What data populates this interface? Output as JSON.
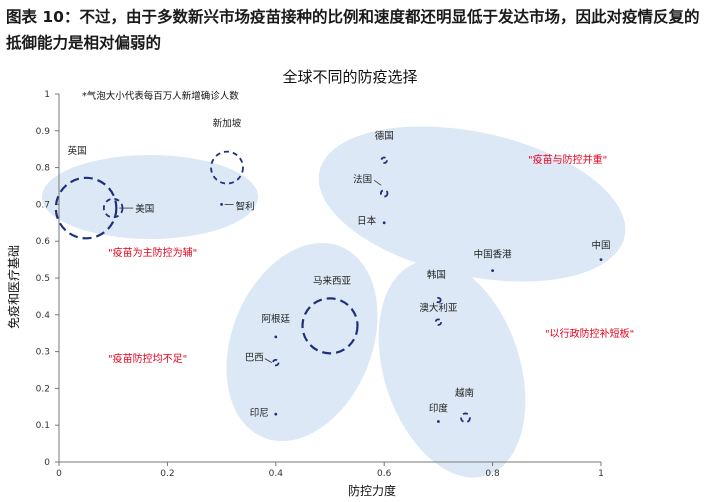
{
  "figure": {
    "caption": "图表 10：不过，由于多数新兴市场疫苗接种的比例和速度都还明显低于发达市场，因此对疫情反复的抵御能力是相对偏弱的"
  },
  "chart_data": {
    "type": "scatter",
    "title": "全球不同的防疫选择",
    "xlabel": "防控力度",
    "ylabel": "免疫和医疗基础",
    "note": "*气泡大小代表每百万人新增确诊人数",
    "xlim": [
      0,
      1
    ],
    "ylim": [
      0,
      1
    ],
    "xticks": [
      "0",
      "0.2",
      "0.4",
      "0.6",
      "0.8",
      "1"
    ],
    "yticks": [
      "0",
      "0.1",
      "0.2",
      "0.3",
      "0.4",
      "0.5",
      "0.6",
      "0.7",
      "0.8",
      "0.9",
      "1"
    ],
    "grid": false,
    "points": [
      {
        "name": "英国",
        "x": 0.05,
        "y": 0.69,
        "bubble": 0.55
      },
      {
        "name": "美国",
        "x": 0.1,
        "y": 0.69,
        "bubble": 0.17
      },
      {
        "name": "新加坡",
        "x": 0.31,
        "y": 0.8,
        "bubble": 0.29
      },
      {
        "name": "智利",
        "x": 0.3,
        "y": 0.7,
        "bubble": 0.0
      },
      {
        "name": "德国",
        "x": 0.6,
        "y": 0.82,
        "bubble": 0.05
      },
      {
        "name": "法国",
        "x": 0.6,
        "y": 0.73,
        "bubble": 0.06
      },
      {
        "name": "日本",
        "x": 0.6,
        "y": 0.65,
        "bubble": 0.0
      },
      {
        "name": "中国香港",
        "x": 0.8,
        "y": 0.52,
        "bubble": 0.0
      },
      {
        "name": "中国",
        "x": 1.0,
        "y": 0.55,
        "bubble": 0.0
      },
      {
        "name": "马来西亚",
        "x": 0.5,
        "y": 0.37,
        "bubble": 0.5
      },
      {
        "name": "阿根廷",
        "x": 0.4,
        "y": 0.34,
        "bubble": 0.0
      },
      {
        "name": "巴西",
        "x": 0.4,
        "y": 0.27,
        "bubble": 0.05
      },
      {
        "name": "印尼",
        "x": 0.4,
        "y": 0.13,
        "bubble": 0.0
      },
      {
        "name": "韩国",
        "x": 0.7,
        "y": 0.44,
        "bubble": 0.04
      },
      {
        "name": "澳大利亚",
        "x": 0.7,
        "y": 0.38,
        "bubble": 0.05
      },
      {
        "name": "印度",
        "x": 0.7,
        "y": 0.11,
        "bubble": 0.0
      },
      {
        "name": "越南",
        "x": 0.75,
        "y": 0.12,
        "bubble": 0.08
      }
    ],
    "annotations": [
      {
        "text": "\"疫苗与防控并重\"",
        "color": "#e8001c"
      },
      {
        "text": "\"疫苗为主防控为辅\"",
        "color": "#e8001c"
      },
      {
        "text": "\"疫苗防控均不足\"",
        "color": "#e8001c"
      },
      {
        "text": "\"以行政防控补短板\"",
        "color": "#e8001c"
      }
    ],
    "colors": {
      "bubble": "#1f2f7a",
      "cluster": "#dce8f5",
      "annotation": "#e8001c"
    }
  }
}
